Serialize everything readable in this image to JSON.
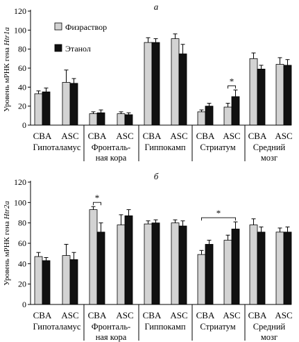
{
  "legend": {
    "series_a": "Физраствор",
    "series_b": "Этанол"
  },
  "colors": {
    "saline": "#d3d3d3",
    "ethanol": "#111111"
  },
  "groups": [
    {
      "line1": "Гипоталамус",
      "line2": ""
    },
    {
      "line1": "Фронталь-",
      "line2": "ная кора"
    },
    {
      "line1": "Гиппокамп",
      "line2": ""
    },
    {
      "line1": "Стриатум",
      "line2": ""
    },
    {
      "line1": "Средний",
      "line2": "мозг"
    }
  ],
  "strains": [
    "CBA",
    "ASC"
  ],
  "chart_data": [
    {
      "type": "bar",
      "panel": "а",
      "ylabel_prefix": "Уровень мРНК гена ",
      "ylabel_gene": "Htr1a",
      "ylim": [
        0,
        120
      ],
      "yticks": [
        0,
        20,
        40,
        60,
        80,
        100,
        120
      ],
      "categories": [
        "CBA",
        "ASC",
        "CBA",
        "ASC",
        "CBA",
        "ASC",
        "CBA",
        "ASC",
        "CBA",
        "ASC"
      ],
      "series": [
        {
          "name": "Физраствор",
          "values": [
            33,
            45,
            12,
            12,
            87,
            91,
            14,
            19,
            70,
            64
          ],
          "errors": [
            3,
            13,
            2,
            2,
            5,
            5,
            2,
            4,
            6,
            7
          ]
        },
        {
          "name": "Этанол",
          "values": [
            35,
            44,
            13,
            11,
            87,
            75,
            20,
            30,
            59,
            63
          ],
          "errors": [
            4,
            5,
            3,
            2,
            4,
            10,
            3,
            7,
            4,
            6
          ]
        }
      ],
      "significance": [
        {
          "label": "*",
          "from_bar": 7,
          "to_bar": 7
        }
      ]
    },
    {
      "type": "bar",
      "panel": "б",
      "ylabel_prefix": "Уровень мРНК гена ",
      "ylabel_gene": "Htr2a",
      "ylim": [
        0,
        120
      ],
      "yticks": [
        0,
        20,
        40,
        60,
        80,
        100,
        120
      ],
      "categories": [
        "CBA",
        "ASC",
        "CBA",
        "ASC",
        "CBA",
        "ASC",
        "CBA",
        "ASC",
        "CBA",
        "ASC"
      ],
      "series": [
        {
          "name": "Физраствор",
          "values": [
            47,
            48,
            93,
            78,
            79,
            80,
            49,
            63,
            78,
            71
          ],
          "errors": [
            4,
            11,
            3,
            10,
            3,
            3,
            4,
            5,
            6,
            4
          ]
        },
        {
          "name": "Этанол",
          "values": [
            43,
            44,
            71,
            87,
            80,
            77,
            59,
            74,
            71,
            71
          ],
          "errors": [
            3,
            7,
            9,
            6,
            3,
            5,
            4,
            7,
            5,
            5
          ]
        }
      ],
      "significance": [
        {
          "label": "*",
          "from_bar": 2,
          "to_bar": 2
        },
        {
          "label": "*",
          "from_bar": 6,
          "to_bar": 7
        }
      ]
    }
  ]
}
